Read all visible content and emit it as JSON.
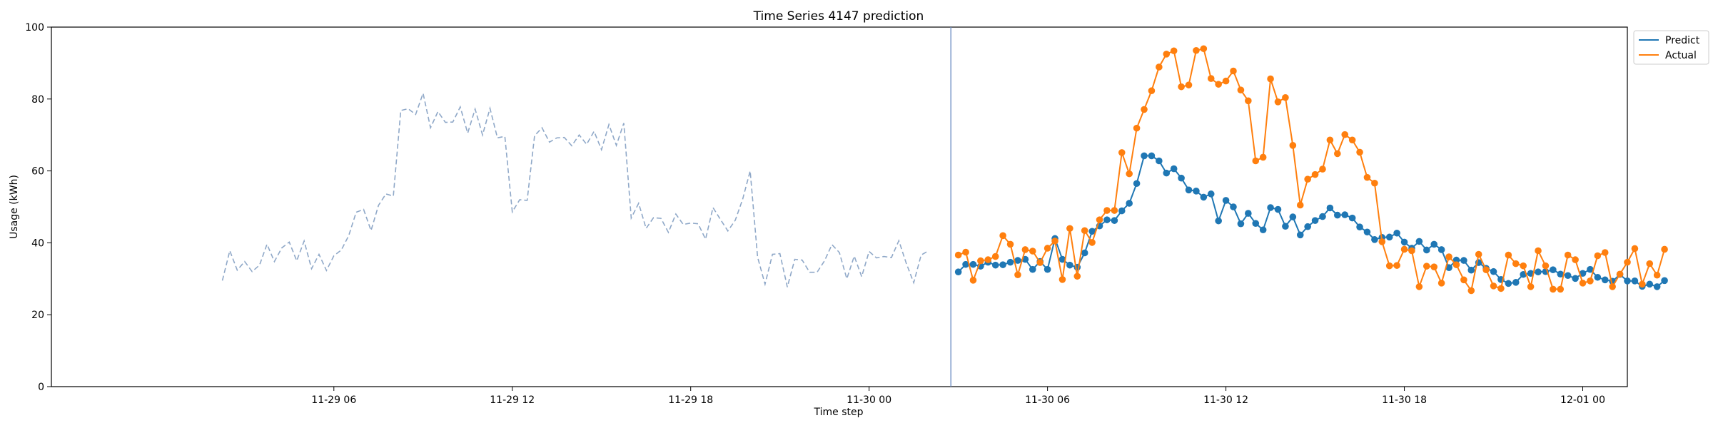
{
  "chart_data": {
    "type": "line",
    "title": "Time Series 4147 prediction",
    "xlabel": "Time step",
    "ylabel": "Usage (kWh)",
    "ylim": [
      0,
      100
    ],
    "xlim_hours": [
      -3.5,
      49.5
    ],
    "x_unit": "hours from 11-29 00:00",
    "yticks": [
      0,
      20,
      40,
      60,
      80,
      100
    ],
    "xticks": [
      {
        "label": "11-29 06",
        "hour": 6
      },
      {
        "label": "11-29 12",
        "hour": 12
      },
      {
        "label": "11-29 18",
        "hour": 18
      },
      {
        "label": "11-30 00",
        "hour": 24
      },
      {
        "label": "11-30 06",
        "hour": 30
      },
      {
        "label": "11-30 12",
        "hour": 36
      },
      {
        "label": "11-30 18",
        "hour": 42
      },
      {
        "label": "12-01 00",
        "hour": 48
      }
    ],
    "grid": false,
    "legend_position": "top-right",
    "cutoff_hour": 26.75,
    "series": [
      {
        "name": "",
        "style": "dashed",
        "color": "#8fa8c8",
        "start_hour": 2.25,
        "step_hours": 0.25,
        "values": [
          29.5,
          37.8,
          32.4,
          34.8,
          32.0,
          33.8,
          39.6,
          34.8,
          38.6,
          40.2,
          35.0,
          40.5,
          32.8,
          36.8,
          32.3,
          36.4,
          38.0,
          42.0,
          48.5,
          49.3,
          43.4,
          50.4,
          53.6,
          53.0,
          76.8,
          77.3,
          75.7,
          81.6,
          72.0,
          76.5,
          73.5,
          73.6,
          77.8,
          70.5,
          77.2,
          70.0,
          77.4,
          69.2,
          69.6,
          48.6,
          52.0,
          51.8,
          69.8,
          72.0,
          68.0,
          69.2,
          69.3,
          67.0,
          70.0,
          67.4,
          71.0,
          65.9,
          72.9,
          67.1,
          73.3,
          46.9,
          51.0,
          44.0,
          47.0,
          46.8,
          42.9,
          48.0,
          45.1,
          45.5,
          45.3,
          41.0,
          49.8,
          46.5,
          43.3,
          46.3,
          52.2,
          60.0,
          36.0,
          28.5,
          36.8,
          37.0,
          27.7,
          35.4,
          35.2,
          31.8,
          31.8,
          35.0,
          39.5,
          37.3,
          30.0,
          36.3,
          30.6,
          37.6,
          35.8,
          36.2,
          35.9,
          40.6,
          34.3,
          28.9,
          36.6,
          37.8
        ]
      },
      {
        "name": "Predict",
        "style": "solid-markers",
        "color": "#1f77b4",
        "start_hour": 27.0,
        "step_hours": 0.25,
        "values": [
          31.9,
          34.0,
          34.0,
          33.5,
          34.6,
          33.8,
          33.9,
          34.6,
          35.1,
          35.4,
          32.6,
          34.8,
          32.6,
          41.2,
          35.4,
          33.8,
          33.2,
          37.2,
          43.2,
          44.7,
          46.4,
          46.2,
          48.9,
          51.0,
          56.5,
          64.2,
          64.2,
          62.8,
          59.4,
          60.6,
          58.0,
          54.7,
          54.4,
          52.7,
          53.6,
          46.1,
          51.8,
          50.0,
          45.3,
          48.2,
          45.4,
          43.6,
          49.8,
          49.3,
          44.6,
          47.2,
          42.2,
          44.5,
          46.2,
          47.3,
          49.7,
          47.7,
          47.8,
          46.9,
          44.4,
          43.0,
          40.9,
          41.5,
          41.6,
          42.7,
          40.2,
          38.5,
          40.4,
          38.0,
          39.6,
          38.1,
          33.1,
          35.2,
          35.1,
          32.4,
          34.5,
          32.9,
          32.0,
          29.8,
          28.7,
          29.0,
          31.2,
          31.5,
          31.9,
          32.0,
          32.5,
          31.3,
          30.9,
          30.1,
          31.5,
          32.6,
          30.4,
          29.7,
          29.3,
          31.2,
          29.4,
          29.4,
          27.9,
          28.5,
          27.8,
          29.5
        ]
      },
      {
        "name": "Actual",
        "style": "solid-markers",
        "color": "#ff7f0e",
        "start_hour": 27.0,
        "step_hours": 0.25,
        "values": [
          36.6,
          37.4,
          29.6,
          35.0,
          35.3,
          36.2,
          42.0,
          39.6,
          31.1,
          38.1,
          37.7,
          34.5,
          38.5,
          40.5,
          29.8,
          44.0,
          30.7,
          43.4,
          40.1,
          46.4,
          49.0,
          49.0,
          65.1,
          59.2,
          71.9,
          77.1,
          82.3,
          88.9,
          92.5,
          93.4,
          83.4,
          83.9,
          93.5,
          94.0,
          85.7,
          84.1,
          85.0,
          87.8,
          82.5,
          79.5,
          62.8,
          63.8,
          85.6,
          79.2,
          80.4,
          67.1,
          50.5,
          57.7,
          59.0,
          60.5,
          68.6,
          64.8,
          70.1,
          68.6,
          65.2,
          58.2,
          56.6,
          40.3,
          33.6,
          33.7,
          38.2,
          37.8,
          27.8,
          33.5,
          33.3,
          28.8,
          36.1,
          33.9,
          29.7,
          26.7,
          36.8,
          32.5,
          28.0,
          27.3,
          36.6,
          34.2,
          33.6,
          27.8,
          37.8,
          33.6,
          27.1,
          27.1,
          36.6,
          35.3,
          28.8,
          29.4,
          36.4,
          37.3,
          27.8,
          31.3,
          34.6,
          38.4,
          28.5,
          34.2,
          31.0,
          38.2
        ]
      }
    ]
  }
}
